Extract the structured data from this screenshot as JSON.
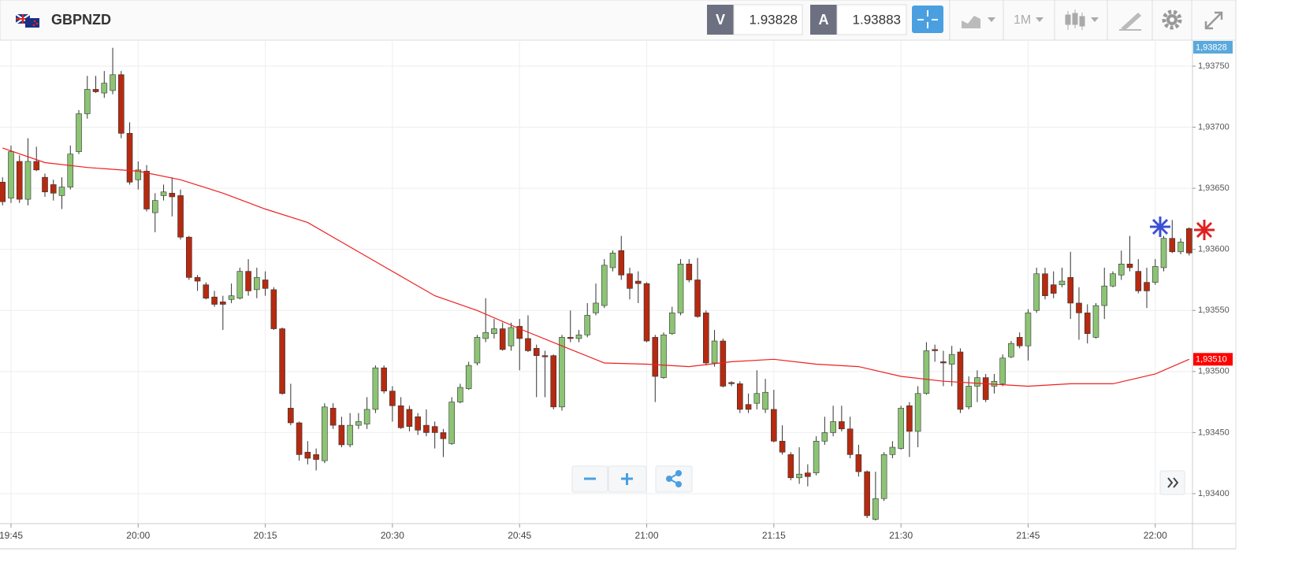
{
  "toolbar": {
    "symbol": "GBPNZD",
    "bid_tag": "V",
    "bid": "1.93828",
    "ask_tag": "A",
    "ask": "1.93883",
    "interval": "1M"
  },
  "chart_data": {
    "type": "candlestick",
    "x": [
      -1,
      0,
      1,
      2,
      3,
      4,
      5,
      6,
      7,
      8,
      9,
      10,
      11,
      12,
      13,
      14,
      15,
      16,
      17,
      18,
      19,
      20,
      21,
      22,
      23,
      24,
      25,
      26,
      27,
      28,
      29,
      30,
      31,
      32,
      33,
      34,
      35,
      36,
      37,
      38,
      39,
      40,
      41,
      42,
      43,
      44,
      45,
      46,
      47,
      48,
      49,
      50,
      51,
      52,
      53,
      54,
      55,
      56,
      57,
      58,
      59,
      60,
      61,
      62,
      63,
      64,
      65,
      66,
      67,
      68,
      69,
      70,
      71,
      72,
      73,
      74,
      75,
      76,
      77,
      78,
      79,
      80,
      81,
      82,
      83,
      84,
      85,
      86,
      87,
      88,
      89,
      90,
      91,
      92,
      93,
      94,
      95,
      96,
      97,
      98,
      99,
      100,
      101,
      102,
      103,
      104,
      105,
      106,
      107,
      108,
      109,
      110,
      111,
      112,
      113,
      114,
      115,
      116,
      117,
      118,
      119,
      120,
      121,
      122,
      123,
      124,
      125,
      126,
      127,
      128,
      129,
      130,
      131,
      132,
      133,
      134,
      135,
      136,
      137,
      138,
      139
    ],
    "open": [
      1.93655,
      1.93642,
      1.93672,
      1.93641,
      1.93672,
      1.93659,
      1.93653,
      1.93644,
      1.93651,
      1.9368,
      1.93711,
      1.93731,
      1.93728,
      1.9373,
      1.93743,
      1.93695,
      1.93657,
      1.93664,
      1.9363,
      1.93644,
      1.93646,
      1.93644,
      1.9361,
      1.93577,
      1.93571,
      1.93561,
      1.93557,
      1.93559,
      1.9356,
      1.93582,
      1.93567,
      1.93575,
      1.93567,
      1.93535,
      1.9347,
      1.93458,
      1.93434,
      1.93432,
      1.93427,
      1.9347,
      1.93456,
      1.9344,
      1.93456,
      1.93457,
      1.93469,
      1.93503,
      1.93484,
      1.93472,
      1.93469,
      1.93463,
      1.93456,
      1.93455,
      1.9345,
      1.93441,
      1.93475,
      1.93486,
      1.93507,
      1.93527,
      1.93531,
      1.93535,
      1.93521,
      1.93537,
      1.93527,
      1.93519,
      1.93513,
      1.93513,
      1.93471,
      1.93528,
      1.93527,
      1.9353,
      1.93548,
      1.93554,
      1.93585,
      1.93599,
      1.9358,
      1.93574,
      1.93572,
      1.93528,
      1.93495,
      1.93531,
      1.93548,
      1.93588,
      1.93575,
      1.93548,
      1.93507,
      1.93525,
      1.93491,
      1.9349,
      1.93473,
      1.93474,
      1.93469,
      1.93469,
      1.93443,
      1.93432,
      1.93413,
      1.93417,
      1.93417,
      1.93443,
      1.9345,
      1.93459,
      1.93453,
      1.93432,
      1.93418,
      1.93379,
      1.93396,
      1.93432,
      1.93437,
      1.93472,
      1.93451,
      1.93482,
      1.93518,
      1.93508,
      1.93506,
      1.93516,
      1.93471,
      1.93488,
      1.93495,
      1.93488,
      1.9349,
      1.93512,
      1.93528,
      1.93521,
      1.9355,
      1.9358,
      1.93571,
      1.93571,
      1.93577,
      1.93556,
      1.93548,
      1.93528,
      1.93554,
      1.9357,
      1.93579,
      1.93588,
      1.93582,
      1.93573,
      1.93573,
      1.93585,
      1.93609,
      1.93598,
      1.93617
    ],
    "high": [
      1.93659,
      1.93685,
      1.93677,
      1.93691,
      1.93684,
      1.93662,
      1.93657,
      1.93659,
      1.93685,
      1.93714,
      1.93742,
      1.93742,
      1.93746,
      1.93765,
      1.93746,
      1.93704,
      1.93672,
      1.93669,
      1.93646,
      1.93653,
      1.93659,
      1.93649,
      1.93611,
      1.93579,
      1.93573,
      1.93566,
      1.93562,
      1.93572,
      1.93585,
      1.93592,
      1.93585,
      1.93582,
      1.93569,
      1.93536,
      1.9349,
      1.93459,
      1.93443,
      1.93437,
      1.93474,
      1.93474,
      1.93463,
      1.93466,
      1.93466,
      1.93479,
      1.93505,
      1.93505,
      1.93488,
      1.93479,
      1.93472,
      1.93466,
      1.93469,
      1.93459,
      1.93453,
      1.93479,
      1.9349,
      1.93508,
      1.9353,
      1.9356,
      1.93543,
      1.9354,
      1.9354,
      1.93543,
      1.93546,
      1.93522,
      1.93517,
      1.93514,
      1.9353,
      1.9355,
      1.93534,
      1.93556,
      1.93572,
      1.93592,
      1.93599,
      1.93611,
      1.93585,
      1.93582,
      1.93573,
      1.9353,
      1.93532,
      1.93553,
      1.93592,
      1.93592,
      1.93593,
      1.9355,
      1.93534,
      1.93527,
      1.93492,
      1.93492,
      1.93482,
      1.93501,
      1.93494,
      1.93485,
      1.93456,
      1.93434,
      1.93438,
      1.93424,
      1.93447,
      1.93463,
      1.93472,
      1.93472,
      1.93463,
      1.9344,
      1.93419,
      1.93418,
      1.93434,
      1.93443,
      1.93472,
      1.93475,
      1.93488,
      1.93524,
      1.93522,
      1.93517,
      1.93521,
      1.93519,
      1.93496,
      1.93501,
      1.93498,
      1.93498,
      1.93514,
      1.93525,
      1.93532,
      1.93551,
      1.93585,
      1.93585,
      1.93582,
      1.93585,
      1.93598,
      1.93569,
      1.93555,
      1.93556,
      1.93585,
      1.93582,
      1.93599,
      1.93611,
      1.93592,
      1.93585,
      1.93592,
      1.93611,
      1.93624,
      1.93609,
      1.93618
    ],
    "low": [
      1.93636,
      1.93638,
      1.93638,
      1.93636,
      1.93664,
      1.93643,
      1.9364,
      1.93633,
      1.93649,
      1.93678,
      1.93707,
      1.93728,
      1.93724,
      1.93727,
      1.93691,
      1.93653,
      1.93649,
      1.93631,
      1.93614,
      1.9364,
      1.93627,
      1.93608,
      1.93575,
      1.93566,
      1.93559,
      1.93553,
      1.93534,
      1.93556,
      1.93559,
      1.93562,
      1.9356,
      1.93562,
      1.93534,
      1.93481,
      1.93456,
      1.93427,
      1.93424,
      1.93419,
      1.93425,
      1.93453,
      1.93438,
      1.93438,
      1.93453,
      1.93453,
      1.93466,
      1.93482,
      1.93459,
      1.93453,
      1.93451,
      1.93448,
      1.93447,
      1.93437,
      1.9343,
      1.9344,
      1.93474,
      1.93485,
      1.93505,
      1.93524,
      1.93527,
      1.93517,
      1.93517,
      1.93501,
      1.93516,
      1.93479,
      1.93479,
      1.93469,
      1.93468,
      1.93524,
      1.93524,
      1.93528,
      1.93546,
      1.93552,
      1.93582,
      1.93575,
      1.93559,
      1.93556,
      1.93524,
      1.93475,
      1.93494,
      1.9353,
      1.93546,
      1.93573,
      1.93544,
      1.93505,
      1.93504,
      1.93487,
      1.93488,
      1.93466,
      1.93466,
      1.93469,
      1.93466,
      1.93442,
      1.93432,
      1.93411,
      1.93408,
      1.93406,
      1.93415,
      1.9344,
      1.93447,
      1.93451,
      1.93429,
      1.93414,
      1.9338,
      1.93378,
      1.93394,
      1.93429,
      1.93436,
      1.9343,
      1.93438,
      1.93481,
      1.93508,
      1.93488,
      1.93488,
      1.93466,
      1.93469,
      1.93475,
      1.93475,
      1.93482,
      1.93488,
      1.93511,
      1.93519,
      1.93509,
      1.93548,
      1.93559,
      1.9356,
      1.93569,
      1.93543,
      1.93526,
      1.93523,
      1.93527,
      1.93543,
      1.93569,
      1.93575,
      1.93582,
      1.93564,
      1.93552,
      1.93571,
      1.93582,
      1.93597,
      1.93596,
      1.93595
    ],
    "close": [
      1.93639,
      1.9368,
      1.93641,
      1.93672,
      1.93665,
      1.93647,
      1.93646,
      1.93651,
      1.93678,
      1.93711,
      1.93731,
      1.93729,
      1.93736,
      1.93743,
      1.93695,
      1.93655,
      1.93665,
      1.93633,
      1.9364,
      1.93647,
      1.93643,
      1.9361,
      1.93577,
      1.93574,
      1.9356,
      1.93555,
      1.93555,
      1.93562,
      1.93582,
      1.93566,
      1.93577,
      1.93568,
      1.93535,
      1.93482,
      1.93458,
      1.93432,
      1.93429,
      1.93428,
      1.93471,
      1.93456,
      1.9344,
      1.93456,
      1.93459,
      1.93469,
      1.93503,
      1.93484,
      1.93472,
      1.93454,
      1.93455,
      1.93452,
      1.9345,
      1.9345,
      1.93445,
      1.93475,
      1.93487,
      1.93505,
      1.93528,
      1.93532,
      1.93535,
      1.93518,
      1.93536,
      1.93527,
      1.93517,
      1.93513,
      1.93512,
      1.93471,
      1.93528,
      1.93527,
      1.9353,
      1.93546,
      1.93556,
      1.93587,
      1.93597,
      1.93579,
      1.93568,
      1.93572,
      1.93525,
      1.93496,
      1.9353,
      1.93548,
      1.93588,
      1.93575,
      1.93545,
      1.93507,
      1.93525,
      1.93488,
      1.9349,
      1.93469,
      1.93469,
      1.93482,
      1.93483,
      1.93443,
      1.93434,
      1.93413,
      1.93416,
      1.93414,
      1.93443,
      1.9345,
      1.93459,
      1.93453,
      1.93432,
      1.93418,
      1.93382,
      1.93396,
      1.93432,
      1.93438,
      1.9347,
      1.93451,
      1.93482,
      1.93517,
      1.93517,
      1.93507,
      1.93514,
      1.93469,
      1.93488,
      1.93495,
      1.93477,
      1.93492,
      1.93511,
      1.93523,
      1.93521,
      1.93548,
      1.9358,
      1.93562,
      1.93564,
      1.93574,
      1.93556,
      1.93548,
      1.93531,
      1.93554,
      1.9357,
      1.9358,
      1.93588,
      1.93585,
      1.93566,
      1.93566,
      1.93586,
      1.93609,
      1.93598,
      1.93606,
      1.93597
    ],
    "up_color": "#8cc474",
    "down_color": "#b52a10",
    "xlim": [
      -1.3,
      139.3
    ],
    "ylim": [
      1.933755,
      1.937706
    ],
    "xticks": [
      {
        "value": 0,
        "label": "19:45"
      },
      {
        "value": 15,
        "label": "20:00"
      },
      {
        "value": 30,
        "label": "20:15"
      },
      {
        "value": 45,
        "label": "20:30"
      },
      {
        "value": 60,
        "label": "20:45"
      },
      {
        "value": 75,
        "label": "21:00"
      },
      {
        "value": 90,
        "label": "21:15"
      },
      {
        "value": 105,
        "label": "21:30"
      },
      {
        "value": 120,
        "label": "21:45"
      },
      {
        "value": 135,
        "label": "22:00"
      }
    ],
    "yticks": [
      {
        "value": 1.934,
        "label": "1,93400"
      },
      {
        "value": 1.9345,
        "label": "1,93450"
      },
      {
        "value": 1.935,
        "label": "1,93500"
      },
      {
        "value": 1.9355,
        "label": "1,93550"
      },
      {
        "value": 1.936,
        "label": "1,93600"
      },
      {
        "value": 1.9365,
        "label": "1,93650"
      },
      {
        "value": 1.937,
        "label": "1,93700"
      },
      {
        "value": 1.9375,
        "label": "1,93750"
      }
    ],
    "grid": true,
    "overlay": {
      "color": "#ee2020",
      "x": [
        -1,
        4,
        9,
        15,
        20,
        25,
        30,
        35,
        40,
        45,
        50,
        55,
        60,
        65,
        70,
        75,
        80,
        85,
        90,
        95,
        100,
        105,
        110,
        115,
        120,
        125,
        130,
        135,
        139
      ],
      "values": [
        1.93683,
        1.93671,
        1.93667,
        1.93664,
        1.93657,
        1.93646,
        1.93633,
        1.93622,
        1.93602,
        1.93582,
        1.93562,
        1.9355,
        1.93535,
        1.93521,
        1.93507,
        1.93506,
        1.93504,
        1.93508,
        1.9351,
        1.93506,
        1.93504,
        1.93496,
        1.93492,
        1.9349,
        1.93488,
        1.9349,
        1.9349,
        1.93498,
        1.9351
      ]
    },
    "last_price": {
      "value": 1.93828,
      "label": "1,93828",
      "color": "#5aa9dc"
    },
    "overlay_badge": {
      "value": 1.9351,
      "label": "1,93510",
      "color": "#ff0000"
    }
  }
}
